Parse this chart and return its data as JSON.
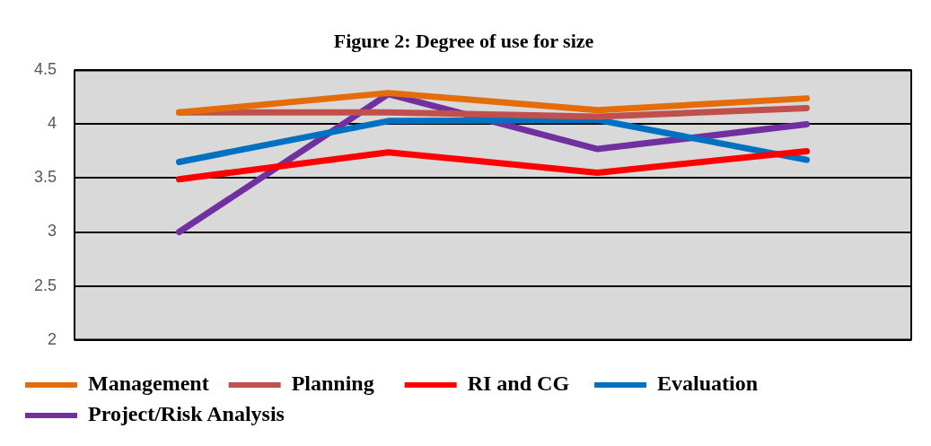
{
  "chart_data": {
    "type": "line",
    "title": "Figure 2: Degree of use for size",
    "categories": [
      null,
      null,
      null,
      null
    ],
    "series": [
      {
        "name": "Management",
        "color": "#e46c0a",
        "values": [
          4.11,
          4.29,
          4.13,
          4.24
        ]
      },
      {
        "name": "Planning",
        "color": "#c0504d",
        "values": [
          4.11,
          4.11,
          4.07,
          4.15
        ]
      },
      {
        "name": "RI and CG",
        "color": "#ff0000",
        "values": [
          3.49,
          3.74,
          3.55,
          3.75
        ]
      },
      {
        "name": "Evaluation",
        "color": "#0070c0",
        "values": [
          3.65,
          4.03,
          4.04,
          3.67
        ]
      },
      {
        "name": "Project/Risk Analysis",
        "color": "#7030a0",
        "values": [
          3.0,
          4.28,
          3.77,
          4.0
        ]
      }
    ],
    "ylim": [
      2,
      4.5
    ],
    "yticks": [
      2,
      2.5,
      3,
      3.5,
      4,
      4.5
    ],
    "grid": "y",
    "legend": "bottom",
    "marker": "none",
    "line_style": "solid"
  }
}
